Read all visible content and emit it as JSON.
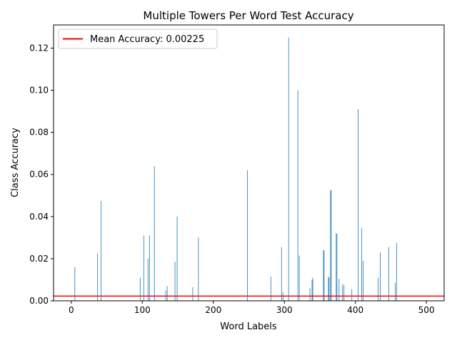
{
  "chart_data": {
    "type": "bar",
    "title": "Multiple Towers Per Word Test Accuracy",
    "xlabel": "Word Labels",
    "ylabel": "Class Accuracy",
    "xlim": [
      -25,
      525
    ],
    "ylim": [
      0,
      0.131
    ],
    "xticks": [
      0,
      100,
      200,
      300,
      400,
      500
    ],
    "xtick_labels": [
      "0",
      "100",
      "200",
      "300",
      "400",
      "500"
    ],
    "yticks": [
      0,
      0.02,
      0.04,
      0.06,
      0.08,
      0.1,
      0.12
    ],
    "ytick_labels": [
      "0.00",
      "0.02",
      "0.04",
      "0.06",
      "0.08",
      "0.10",
      "0.12"
    ],
    "grid": false,
    "legend_position": "top-left",
    "bar_color": "#1f77b4",
    "mean_line": {
      "label": "Mean Accuracy: 0.00225",
      "value": 0.00225,
      "color": "#ff0000"
    },
    "series": [
      {
        "name": "",
        "x": [
          5,
          37,
          42,
          97,
          102,
          108,
          110,
          117,
          133,
          135,
          146,
          149,
          171,
          179,
          248,
          281,
          296,
          298,
          306,
          319,
          321,
          336,
          339,
          340,
          355,
          356,
          362,
          363,
          365,
          366,
          373,
          374,
          377,
          382,
          384,
          395,
          404,
          409,
          411,
          432,
          435,
          447,
          456,
          458
        ],
        "values": [
          0.016,
          0.0225,
          0.0475,
          0.011,
          0.031,
          0.02,
          0.031,
          0.064,
          0.005,
          0.007,
          0.0185,
          0.04,
          0.0065,
          0.03,
          0.062,
          0.0115,
          0.0255,
          0.004,
          0.125,
          0.1,
          0.0215,
          0.006,
          0.01,
          0.011,
          0.024,
          0.024,
          0.0115,
          0.011,
          0.0525,
          0.0525,
          0.032,
          0.032,
          0.0105,
          0.008,
          0.0075,
          0.0055,
          0.091,
          0.0345,
          0.019,
          0.011,
          0.023,
          0.0255,
          0.0085,
          0.0275
        ]
      }
    ]
  }
}
